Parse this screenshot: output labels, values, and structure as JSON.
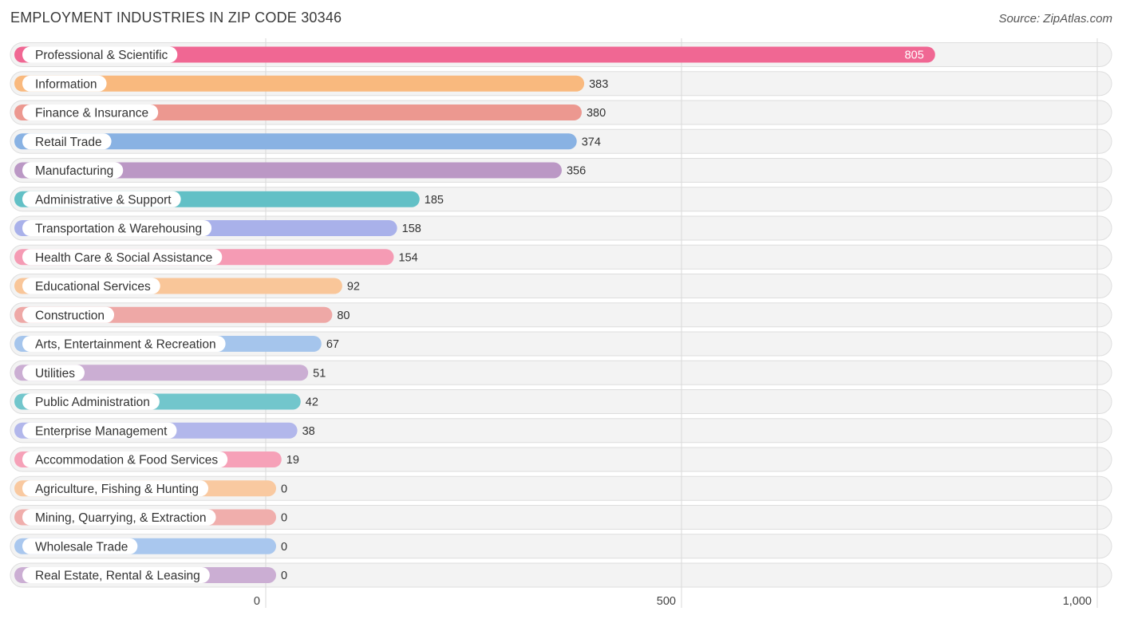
{
  "header": {
    "title": "EMPLOYMENT INDUSTRIES IN ZIP CODE 30346",
    "source": "Source: ZipAtlas.com"
  },
  "chart_data": {
    "type": "bar",
    "orientation": "horizontal",
    "title": "EMPLOYMENT INDUSTRIES IN ZIP CODE 30346",
    "xlim": [
      0,
      1000
    ],
    "xticks": [
      0,
      500,
      1000
    ],
    "xtick_labels": [
      "0",
      "500",
      "1,000"
    ],
    "grid": true,
    "categories": [
      "Professional & Scientific",
      "Information",
      "Finance & Insurance",
      "Retail Trade",
      "Manufacturing",
      "Administrative & Support",
      "Transportation & Warehousing",
      "Health Care & Social Assistance",
      "Educational Services",
      "Construction",
      "Arts, Entertainment & Recreation",
      "Utilities",
      "Public Administration",
      "Enterprise Management",
      "Accommodation & Food Services",
      "Agriculture, Fishing & Hunting",
      "Mining, Quarrying, & Extraction",
      "Wholesale Trade",
      "Real Estate, Rental & Leasing"
    ],
    "values": [
      805,
      383,
      380,
      374,
      356,
      185,
      158,
      154,
      92,
      80,
      67,
      51,
      42,
      38,
      19,
      0,
      0,
      0,
      0
    ],
    "colors": [
      "#f06793",
      "#f9b97e",
      "#ec9890",
      "#89b2e3",
      "#bb98c5",
      "#62c0c6",
      "#a9b1ea",
      "#f59bb4",
      "#f9c699",
      "#eea8a6",
      "#a5c5ec",
      "#cbaed3",
      "#72c6cc",
      "#b2b7eb",
      "#f6a1b8",
      "#f9c9a0",
      "#f0aeac",
      "#a9c7ee",
      "#cbaed3"
    ]
  }
}
